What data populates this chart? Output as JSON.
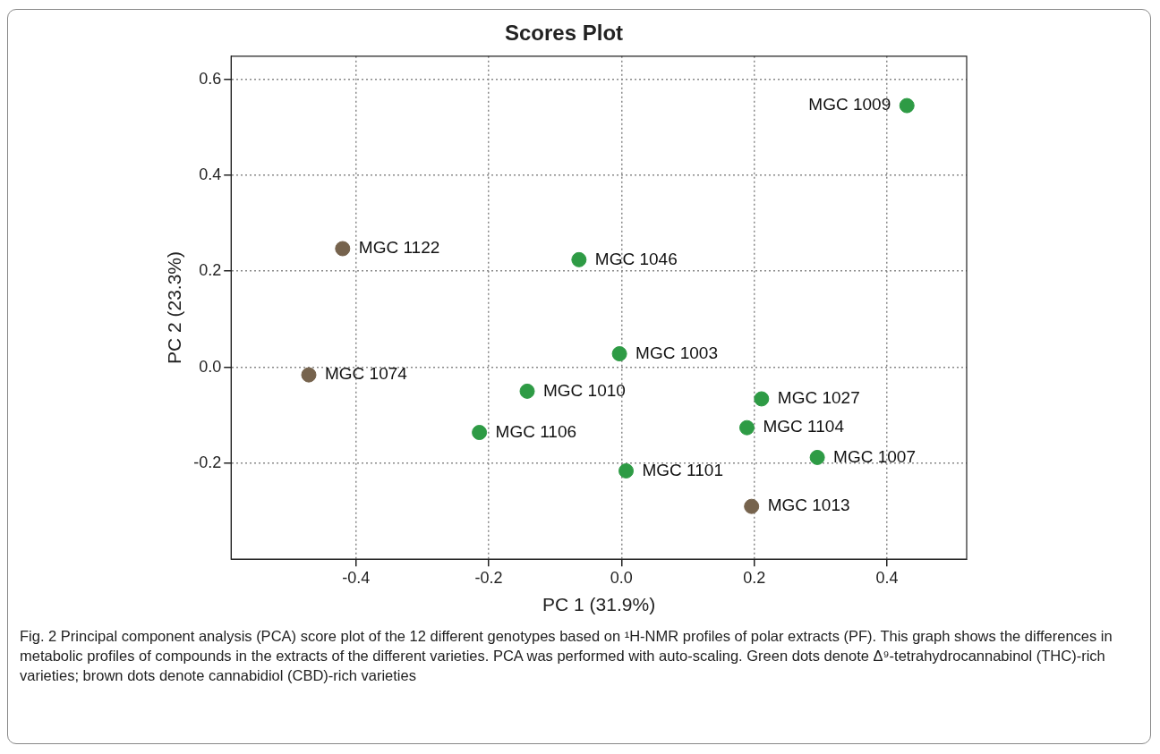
{
  "chart_data": {
    "type": "scatter",
    "title": "Scores Plot",
    "xlabel": "PC 1 (31.9%)",
    "ylabel": "PC 2 (23.3%)",
    "xlim": [
      -0.588,
      0.52
    ],
    "xticks": [
      {
        "value": -0.4,
        "label": "-0.4"
      },
      {
        "value": -0.2,
        "label": "-0.2"
      },
      {
        "value": 0,
        "label": "0.0"
      },
      {
        "value": 0.2,
        "label": "0.2"
      },
      {
        "value": 0.4,
        "label": "0.4"
      }
    ],
    "ylim": [
      -0.4,
      0.648
    ],
    "yticks": [
      {
        "value": -0.2,
        "label": "-0.2"
      },
      {
        "value": 0,
        "label": "0.0"
      },
      {
        "value": 0.2,
        "label": "0.2"
      },
      {
        "value": 0.4,
        "label": "0.4"
      },
      {
        "value": 0.6,
        "label": "0.6"
      }
    ],
    "grid": true,
    "marker": "circle",
    "legend": false,
    "series": [
      {
        "color": "#2e9b45",
        "x": [
          0.43,
          -0.064,
          -0.003,
          -0.142,
          0.211,
          0.189,
          -0.214,
          0.295,
          0.007
        ],
        "values": [
          0.545,
          0.224,
          0.028,
          -0.05,
          -0.066,
          -0.126,
          -0.136,
          -0.188,
          -0.216
        ]
      },
      {
        "color": "#76634d",
        "x": [
          -0.42,
          -0.471,
          0.196
        ],
        "values": [
          0.247,
          -0.016,
          -0.29
        ]
      }
    ],
    "annotations": [
      {
        "text": "MGC 1009",
        "x": 0.43,
        "y": 0.545
      },
      {
        "text": "MGC 1046",
        "x": -0.064,
        "y": 0.224
      },
      {
        "text": "MGC 1003",
        "x": -0.003,
        "y": 0.028
      },
      {
        "text": "MGC 1010",
        "x": -0.142,
        "y": -0.05
      },
      {
        "text": "MGC 1027",
        "x": 0.211,
        "y": -0.066
      },
      {
        "text": "MGC 1104",
        "x": 0.189,
        "y": -0.126
      },
      {
        "text": "MGC 1106",
        "x": -0.214,
        "y": -0.136
      },
      {
        "text": "MGC 1007",
        "x": 0.295,
        "y": -0.188
      },
      {
        "text": "MGC 1101",
        "x": 0.007,
        "y": -0.216
      },
      {
        "text": "MGC 1122",
        "x": -0.42,
        "y": 0.247
      },
      {
        "text": "MGC 1074",
        "x": -0.471,
        "y": -0.016
      },
      {
        "text": "MGC 1013",
        "x": 0.196,
        "y": -0.29
      },
      "Fig. 2  Principal component analysis (PCA) score plot of the 12 different genotypes based on ¹H-NMR profiles of polar extracts (PF). This graph shows the differences in metabolic profiles of compounds in the extracts of the different varieties. PCA was performed with auto-scaling. Green dots denote Δ⁹-tetrahydrocannabinol (THC)-rich varieties; brown dots denote cannabidiol (CBD)-rich varieties"
    ]
  }
}
